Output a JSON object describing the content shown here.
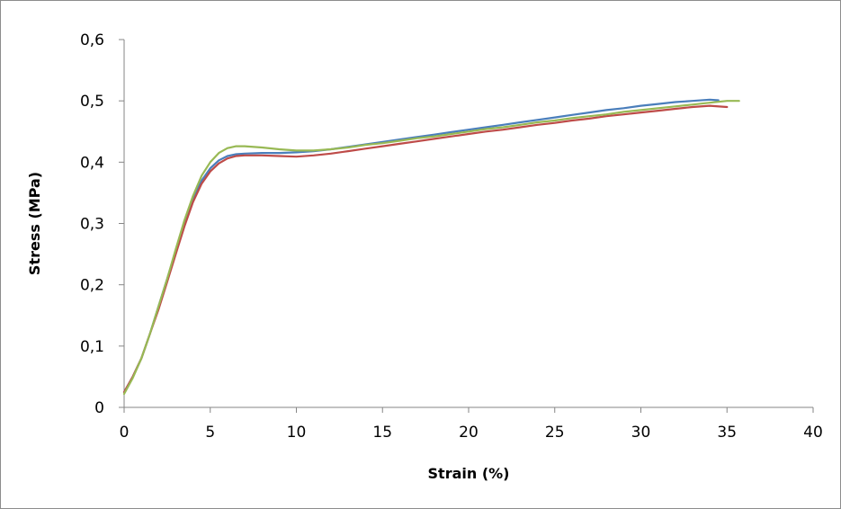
{
  "chart_data": {
    "type": "line",
    "title": "",
    "xlabel": "Strain (%)",
    "ylabel": "Stress (MPa)",
    "xlim": [
      0,
      40
    ],
    "ylim": [
      0,
      0.6
    ],
    "x_ticks": [
      0,
      5,
      10,
      15,
      20,
      25,
      30,
      35,
      40
    ],
    "x_tick_labels": [
      "0",
      "5",
      "10",
      "15",
      "20",
      "25",
      "30",
      "35",
      "40"
    ],
    "y_ticks": [
      0,
      0.1,
      0.2,
      0.3,
      0.4,
      0.5,
      0.6
    ],
    "y_tick_labels": [
      "0",
      "0,1",
      "0,2",
      "0,3",
      "0,4",
      "0,5",
      "0,6"
    ],
    "grid": false,
    "legend": "none",
    "series": [
      {
        "color": "#4a7ebb",
        "x": [
          0,
          0.5,
          1,
          1.5,
          2,
          2.5,
          3,
          3.5,
          4,
          4.5,
          5,
          5.5,
          6,
          6.5,
          7,
          8,
          9,
          10,
          11,
          12,
          13,
          14,
          15,
          16,
          17,
          18,
          19,
          20,
          21,
          22,
          23,
          24,
          25,
          26,
          27,
          28,
          29,
          30,
          31,
          32,
          33,
          34,
          34.5
        ],
        "y": [
          0.025,
          0.05,
          0.08,
          0.12,
          0.165,
          0.21,
          0.255,
          0.3,
          0.34,
          0.37,
          0.39,
          0.403,
          0.41,
          0.413,
          0.414,
          0.415,
          0.415,
          0.416,
          0.418,
          0.421,
          0.425,
          0.429,
          0.433,
          0.437,
          0.441,
          0.445,
          0.449,
          0.453,
          0.457,
          0.461,
          0.465,
          0.469,
          0.473,
          0.477,
          0.481,
          0.485,
          0.488,
          0.492,
          0.495,
          0.498,
          0.5,
          0.502,
          0.501
        ]
      },
      {
        "color": "#be4b48",
        "x": [
          0,
          0.5,
          1,
          1.5,
          2,
          2.5,
          3,
          3.5,
          4,
          4.5,
          5,
          5.5,
          6,
          6.5,
          7,
          8,
          9,
          10,
          11,
          12,
          13,
          14,
          15,
          16,
          17,
          18,
          19,
          20,
          21,
          22,
          23,
          24,
          25,
          26,
          27,
          28,
          29,
          30,
          31,
          32,
          33,
          34,
          35
        ],
        "y": [
          0.025,
          0.05,
          0.08,
          0.12,
          0.16,
          0.205,
          0.25,
          0.295,
          0.335,
          0.365,
          0.385,
          0.398,
          0.406,
          0.41,
          0.411,
          0.411,
          0.41,
          0.409,
          0.411,
          0.414,
          0.418,
          0.422,
          0.426,
          0.43,
          0.434,
          0.438,
          0.442,
          0.446,
          0.45,
          0.453,
          0.457,
          0.461,
          0.464,
          0.468,
          0.471,
          0.475,
          0.478,
          0.481,
          0.484,
          0.487,
          0.49,
          0.492,
          0.49
        ]
      },
      {
        "color": "#98b954",
        "x": [
          0,
          0.5,
          1,
          1.5,
          2,
          2.5,
          3,
          3.5,
          4,
          4.5,
          5,
          5.5,
          6,
          6.5,
          7,
          8,
          9,
          10,
          11,
          12,
          13,
          14,
          15,
          16,
          17,
          18,
          19,
          20,
          21,
          22,
          23,
          24,
          25,
          26,
          27,
          28,
          29,
          30,
          31,
          32,
          33,
          34,
          35,
          35.7
        ],
        "y": [
          0.022,
          0.048,
          0.08,
          0.12,
          0.165,
          0.21,
          0.258,
          0.305,
          0.345,
          0.378,
          0.4,
          0.415,
          0.423,
          0.426,
          0.426,
          0.424,
          0.421,
          0.419,
          0.419,
          0.421,
          0.424,
          0.428,
          0.431,
          0.435,
          0.439,
          0.442,
          0.446,
          0.45,
          0.454,
          0.457,
          0.461,
          0.465,
          0.468,
          0.472,
          0.475,
          0.478,
          0.482,
          0.485,
          0.488,
          0.491,
          0.494,
          0.497,
          0.5,
          0.5
        ]
      }
    ]
  }
}
